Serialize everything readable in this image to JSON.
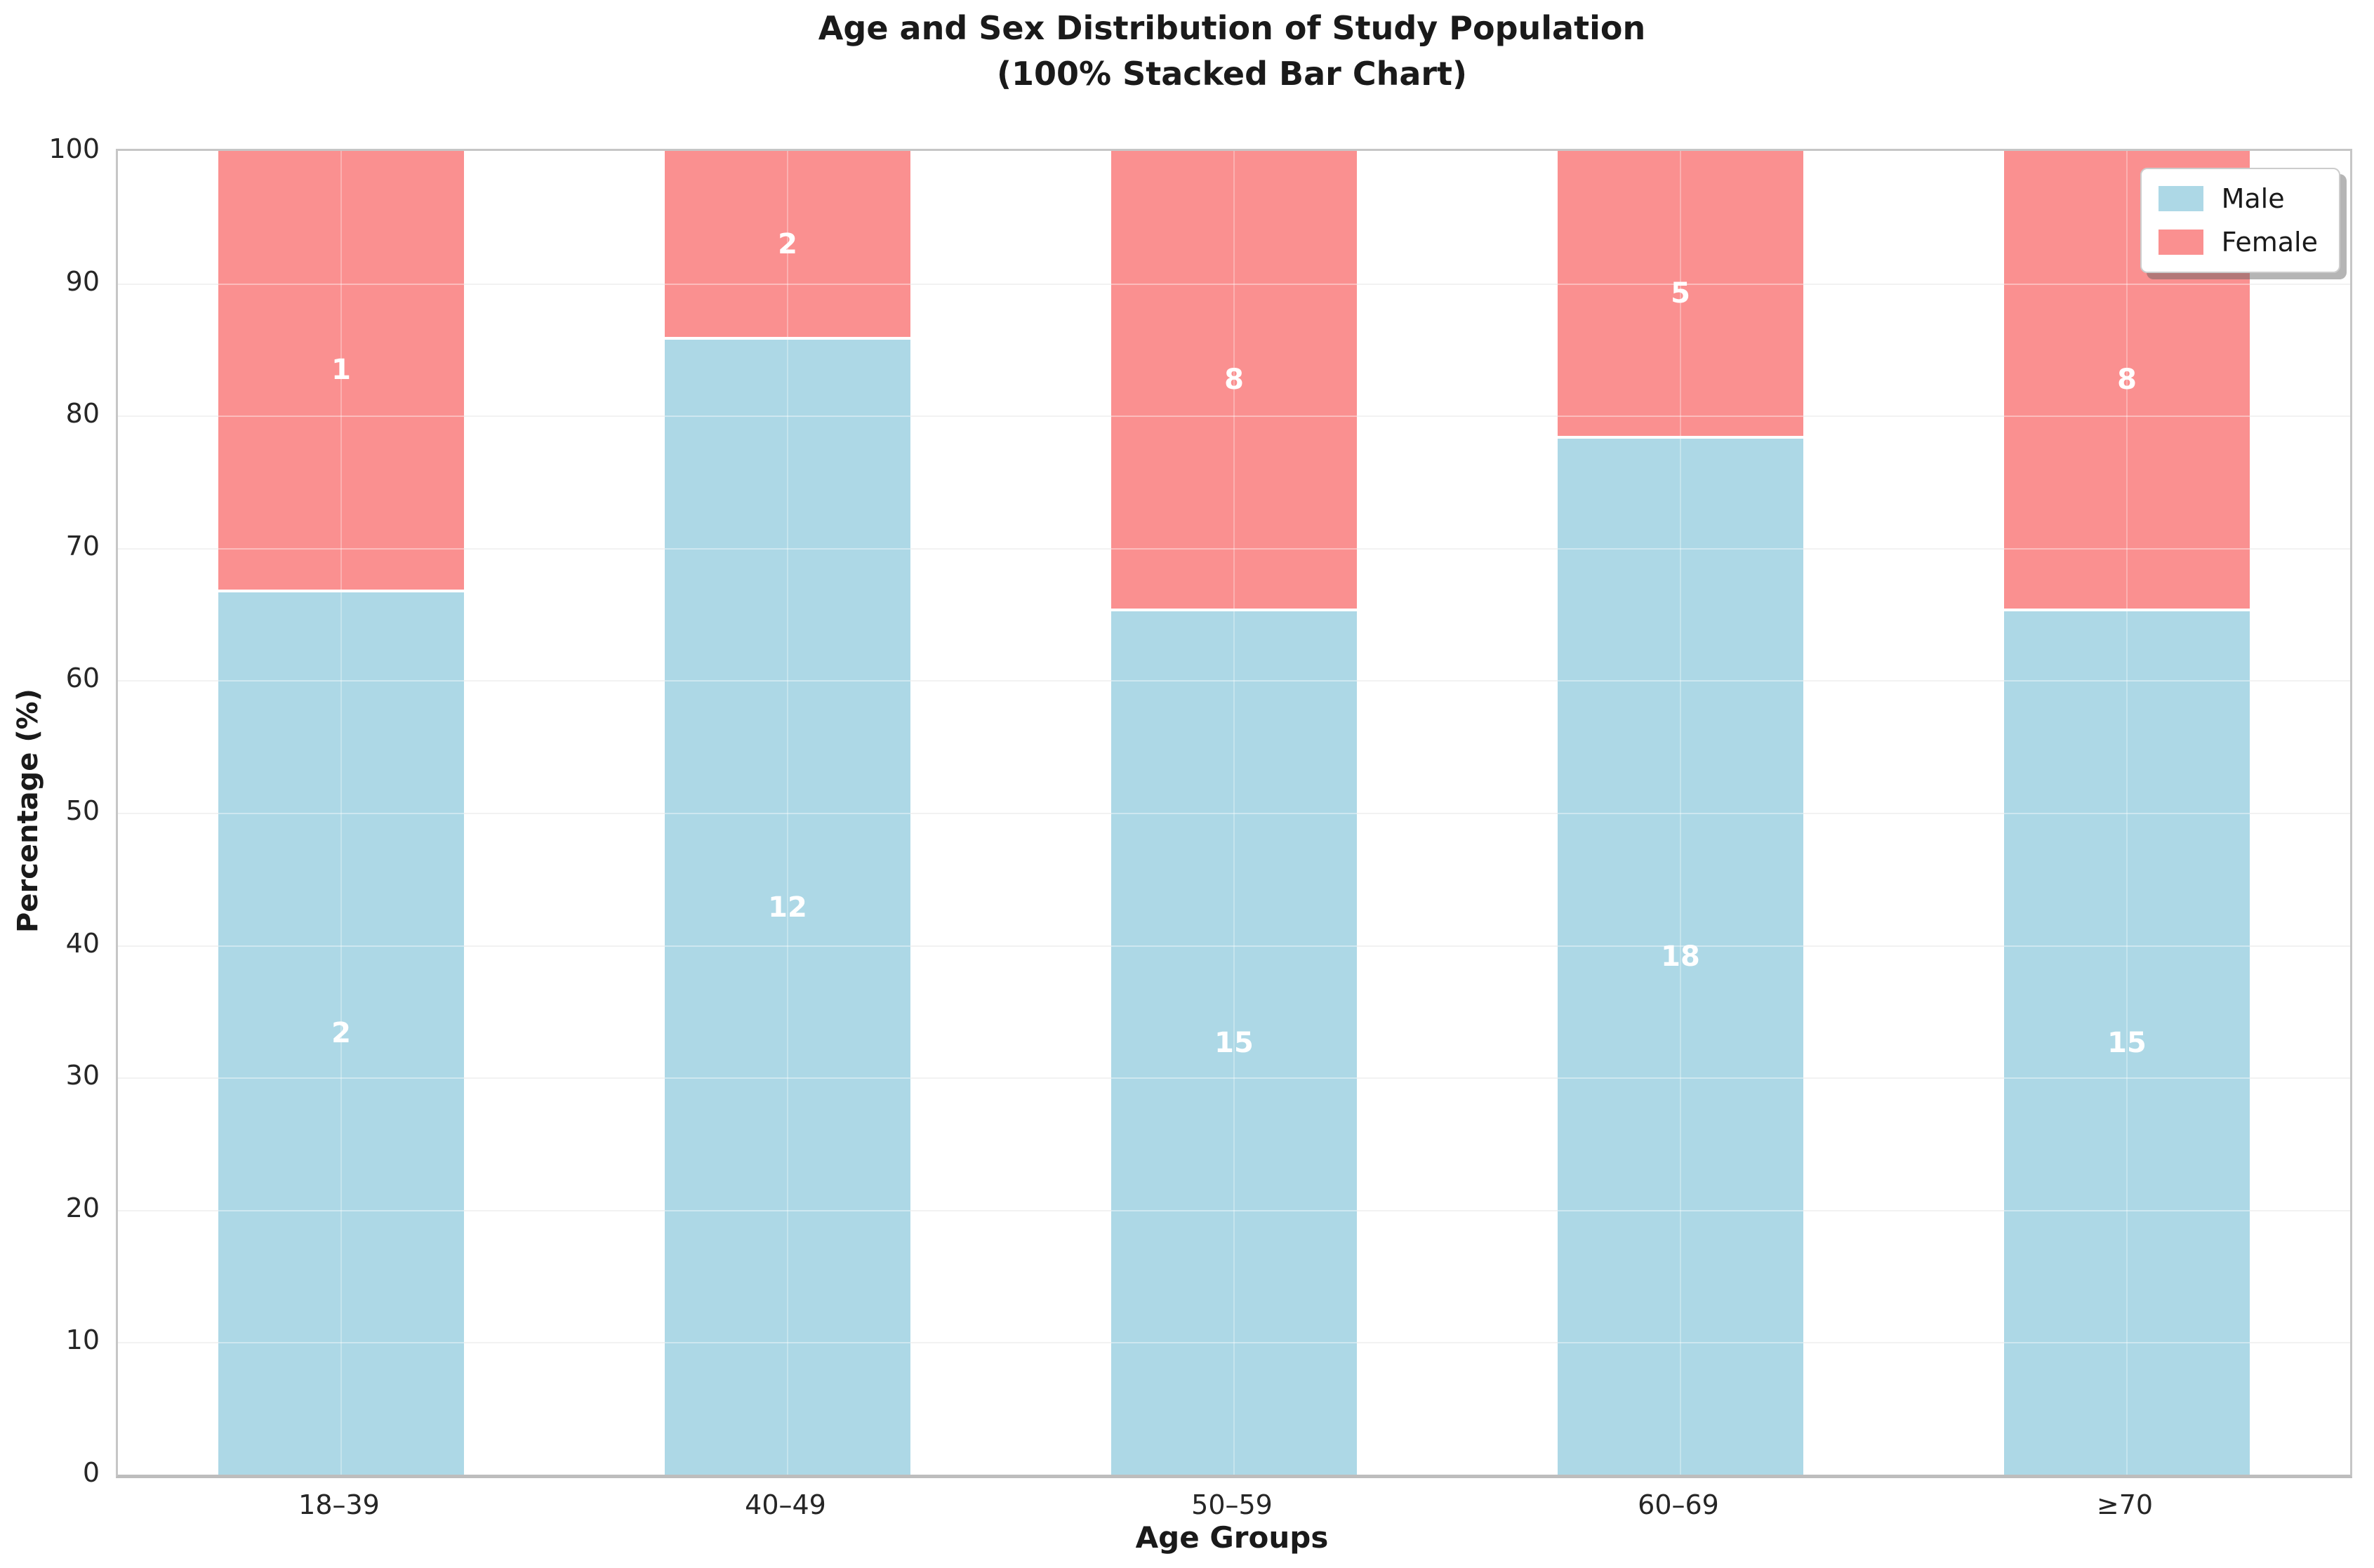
{
  "title": {
    "line1": "Age and Sex Distribution of Study Population",
    "line2": "(100% Stacked Bar Chart)"
  },
  "axes": {
    "y_label": "Percentage (%)",
    "x_label": "Age Groups",
    "y_ticks": [
      0,
      10,
      20,
      30,
      40,
      50,
      60,
      70,
      80,
      90,
      100
    ]
  },
  "legend": {
    "entries": [
      {
        "label": "Male",
        "color": "#ADD8E6"
      },
      {
        "label": "Female",
        "color": "#FA9090"
      }
    ],
    "position": "upper right"
  },
  "colors": {
    "male": "#ADD8E6",
    "female": "#FA9090",
    "spine": "#c6c6c6",
    "grid": "#e9e9e9",
    "value_label": "#ffffff"
  },
  "chart_data": {
    "type": "bar",
    "stacked": true,
    "normalized_percent": true,
    "title": "Age and Sex Distribution of Study Population (100% Stacked Bar Chart)",
    "xlabel": "Age Groups",
    "ylabel": "Percentage (%)",
    "ylim": [
      0,
      100
    ],
    "grid": true,
    "legend_position": "upper right",
    "categories": [
      "18–39",
      "40–49",
      "50–59",
      "60–69",
      "≥70"
    ],
    "series": [
      {
        "name": "Male",
        "color": "#ADD8E6",
        "values": [
          2,
          12,
          15,
          18,
          15
        ]
      },
      {
        "name": "Female",
        "color": "#FA9090",
        "values": [
          1,
          2,
          8,
          5,
          8
        ]
      }
    ],
    "segment_percentages": {
      "male": [
        66.67,
        85.71,
        65.22,
        78.26,
        65.22
      ],
      "female": [
        33.33,
        14.29,
        34.78,
        21.74,
        34.78
      ]
    }
  }
}
